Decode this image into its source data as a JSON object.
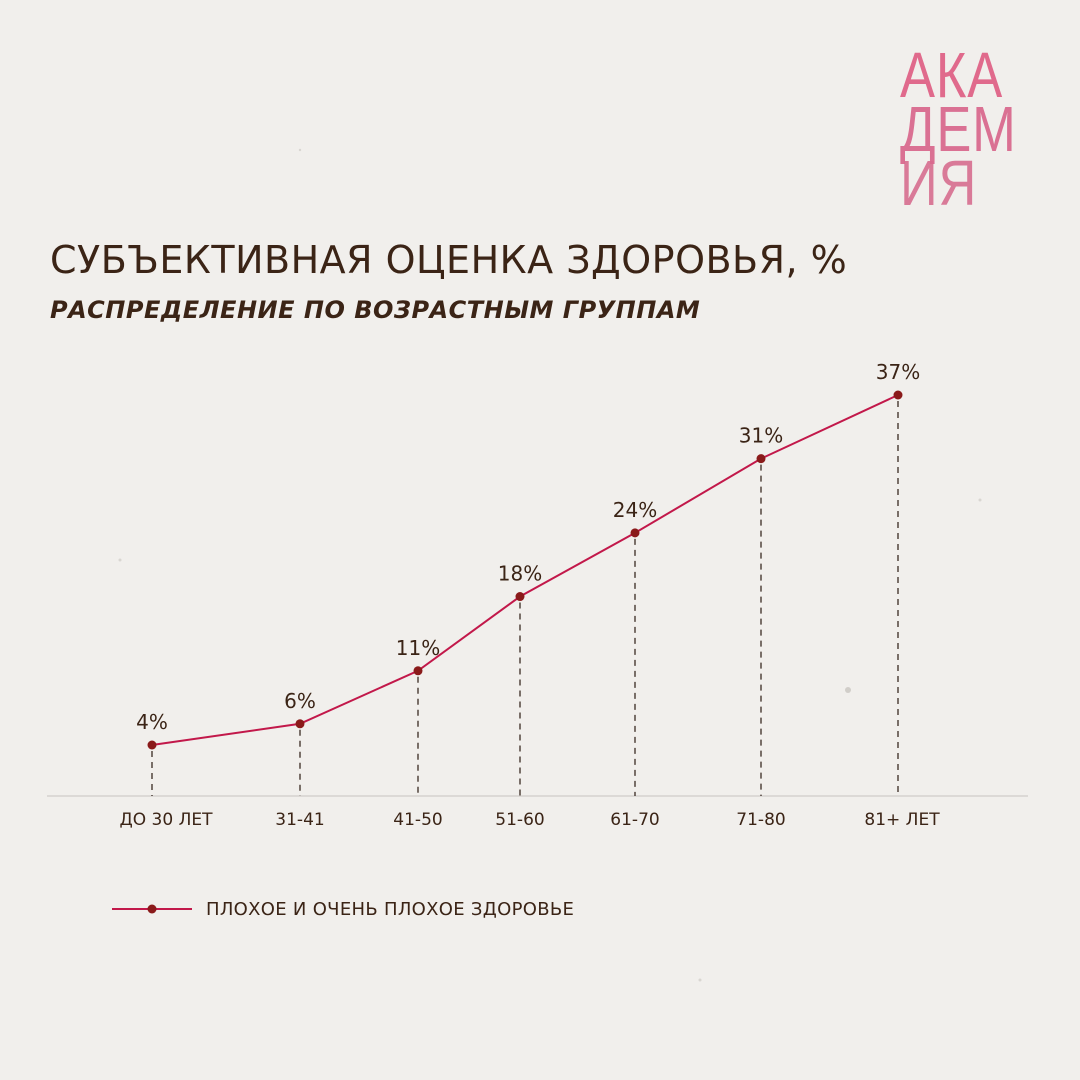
{
  "logo": {
    "line1": "АКА",
    "line2": "ДЕМ",
    "line3": "ИЯ"
  },
  "colors": {
    "line": "#c2184a",
    "marker": "#8a1a1a",
    "text": "#3b2416",
    "background": "#f1efec",
    "logo": "#e06a8c"
  },
  "chart_data": {
    "type": "line",
    "title": "СУБЪЕКТИВНАЯ ОЦЕНКА ЗДОРОВЬЯ, %",
    "subtitle": "РАСПРЕДЕЛЕНИЕ ПО ВОЗРАСТНЫМ ГРУППАМ",
    "categories": [
      "ДО 30 ЛЕТ",
      "31-41",
      "41-50",
      "51-60",
      "61-70",
      "71-80",
      "81+ ЛЕТ"
    ],
    "series": [
      {
        "name": "ПЛОХОЕ И ОЧЕНЬ ПЛОХОЕ ЗДОРОВЬЕ",
        "values": [
          4,
          6,
          11,
          18,
          24,
          31,
          37
        ],
        "labels": [
          "4%",
          "6%",
          "11%",
          "18%",
          "24%",
          "31%",
          "37%"
        ]
      }
    ],
    "ylim": [
      0,
      38
    ],
    "grid": false,
    "drop_lines": "dashed",
    "legend_position": "bottom-left"
  }
}
